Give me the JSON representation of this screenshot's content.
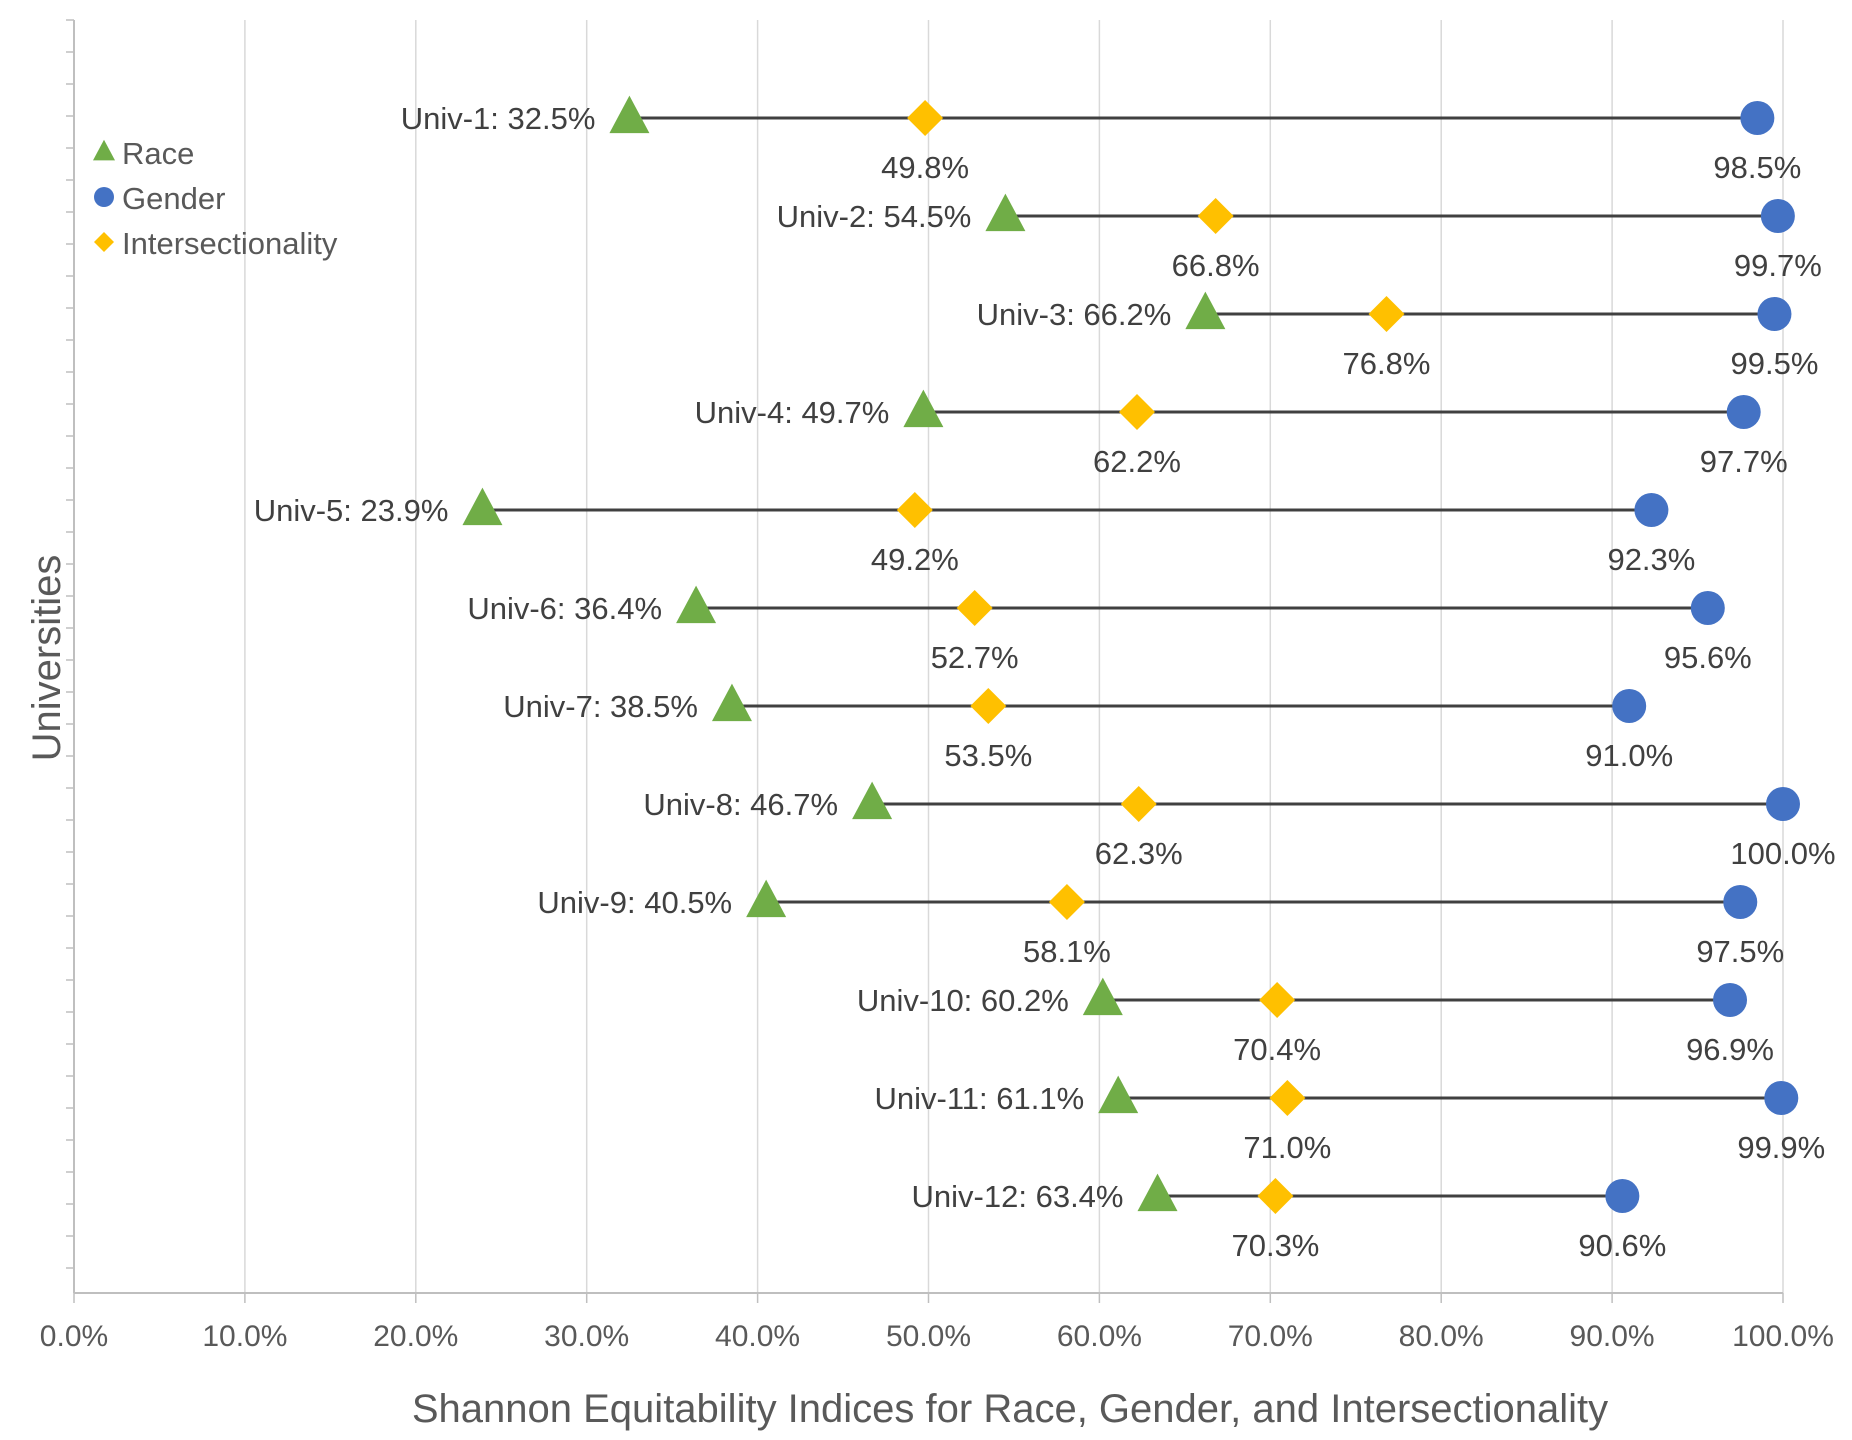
{
  "chart_data": {
    "type": "scatter",
    "subtype": "dumbbell",
    "title": "",
    "xlabel": "Shannon Equitability Indices for Race, Gender, and Intersectionality",
    "ylabel": "Universities",
    "xlim": [
      0,
      100
    ],
    "x_ticks": [
      0,
      10,
      20,
      30,
      40,
      50,
      60,
      70,
      80,
      90,
      100
    ],
    "x_tick_labels": [
      "0.0%",
      "10.0%",
      "20.0%",
      "30.0%",
      "40.0%",
      "50.0%",
      "60.0%",
      "70.0%",
      "80.0%",
      "90.0%",
      "100.0%"
    ],
    "grid": "vertical",
    "legend_position": "top-left",
    "categories": [
      "Univ-1",
      "Univ-2",
      "Univ-3",
      "Univ-4",
      "Univ-5",
      "Univ-6",
      "Univ-7",
      "Univ-8",
      "Univ-9",
      "Univ-10",
      "Univ-11",
      "Univ-12"
    ],
    "series": [
      {
        "name": "Race",
        "marker": "triangle",
        "color": "#70AD47",
        "values": [
          32.5,
          54.5,
          66.2,
          49.7,
          23.9,
          36.4,
          38.5,
          46.7,
          40.5,
          60.2,
          61.1,
          63.4
        ]
      },
      {
        "name": "Gender",
        "marker": "circle",
        "color": "#4472C4",
        "values": [
          98.5,
          99.7,
          99.5,
          97.7,
          92.3,
          95.6,
          91.0,
          100.0,
          97.5,
          96.9,
          99.9,
          90.6
        ]
      },
      {
        "name": "Intersectionality",
        "marker": "diamond",
        "color": "#FFC000",
        "values": [
          49.8,
          66.8,
          76.8,
          62.2,
          49.2,
          52.7,
          53.5,
          62.3,
          58.1,
          70.4,
          71.0,
          70.3
        ]
      }
    ],
    "point_labels": {
      "race": [
        "Univ-1:  32.5%",
        "Univ-2:  54.5%",
        "Univ-3:  66.2%",
        "Univ-4:  49.7%",
        "Univ-5:  23.9%",
        "Univ-6:  36.4%",
        "Univ-7:  38.5%",
        "Univ-8:  46.7%",
        "Univ-9:  40.5%",
        "Univ-10:  60.2%",
        "Univ-11:  61.1%",
        "Univ-12:  63.4%"
      ],
      "gender": [
        "98.5%",
        "99.7%",
        "99.5%",
        "97.7%",
        "92.3%",
        "95.6%",
        "91.0%",
        "100.0%",
        "97.5%",
        "96.9%",
        "99.9%",
        "90.6%"
      ],
      "intersectionality": [
        "49.8%",
        "66.8%",
        "76.8%",
        "62.2%",
        "49.2%",
        "52.7%",
        "53.5%",
        "62.3%",
        "58.1%",
        "70.4%",
        "71.0%",
        "70.3%"
      ]
    },
    "connector_color": "#404040",
    "gridline_color": "#D9D9D9",
    "axis_color": "#BFBFBF"
  }
}
